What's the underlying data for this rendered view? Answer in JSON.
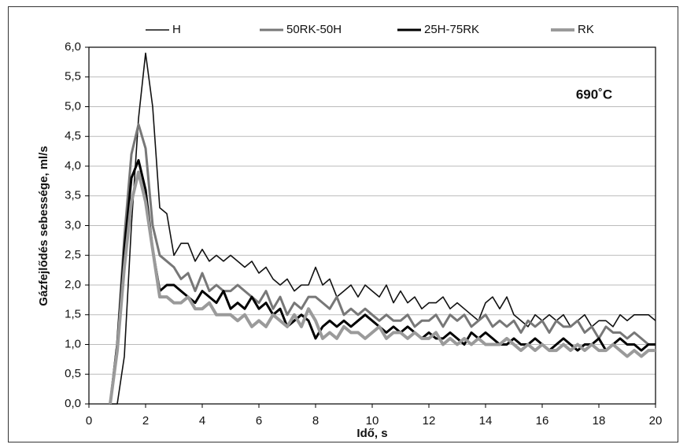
{
  "chart_data": {
    "type": "line",
    "x_label": "Idő,     s",
    "y_label": "Gázfejlődés sebessége,  ml/s",
    "annotation": "690˚C",
    "legend": "top",
    "grid": true,
    "xlim": [
      0,
      20
    ],
    "xticks": [
      0,
      2,
      4,
      6,
      8,
      10,
      12,
      14,
      16,
      18,
      20
    ],
    "ylim": [
      0,
      6
    ],
    "yticks": [
      {
        "value": 0,
        "label": "0,0"
      },
      {
        "value": 0.5,
        "label": "0,5"
      },
      {
        "value": 1,
        "label": "1,0"
      },
      {
        "value": 1.5,
        "label": "1,5"
      },
      {
        "value": 2,
        "label": "2,0"
      },
      {
        "value": 2.5,
        "label": "2,5"
      },
      {
        "value": 3,
        "label": "3,0"
      },
      {
        "value": 3.5,
        "label": "3,5"
      },
      {
        "value": 4,
        "label": "4,0"
      },
      {
        "value": 4.5,
        "label": "4,5"
      },
      {
        "value": 5,
        "label": "5,0"
      },
      {
        "value": 5.5,
        "label": "5,5"
      },
      {
        "value": 6,
        "label": "6,0"
      }
    ],
    "x": [
      0.75,
      1,
      1.25,
      1.5,
      1.75,
      2,
      2.25,
      2.5,
      2.75,
      3,
      3.25,
      3.5,
      3.75,
      4,
      4.25,
      4.5,
      4.75,
      5,
      5.25,
      5.5,
      5.75,
      6,
      6.25,
      6.5,
      6.75,
      7,
      7.25,
      7.5,
      7.75,
      8,
      8.25,
      8.5,
      8.75,
      9,
      9.25,
      9.5,
      9.75,
      10,
      10.25,
      10.5,
      10.75,
      11,
      11.25,
      11.5,
      11.75,
      12,
      12.25,
      12.5,
      12.75,
      13,
      13.25,
      13.5,
      13.75,
      14,
      14.25,
      14.5,
      14.75,
      15,
      15.25,
      15.5,
      15.75,
      16,
      16.25,
      16.5,
      16.75,
      17,
      17.25,
      17.5,
      17.75,
      18,
      18.25,
      18.5,
      18.75,
      19,
      19.25,
      19.5,
      19.75,
      20
    ],
    "series": [
      {
        "name": "H",
        "color": "#111111",
        "values": [
          0,
          0,
          0.8,
          3.0,
          4.8,
          5.9,
          5.0,
          3.3,
          3.2,
          2.5,
          2.7,
          2.7,
          2.4,
          2.6,
          2.4,
          2.5,
          2.4,
          2.5,
          2.4,
          2.3,
          2.4,
          2.2,
          2.3,
          2.1,
          2.0,
          2.1,
          1.9,
          2.0,
          2.0,
          2.3,
          2.0,
          2.1,
          1.8,
          1.9,
          2.0,
          1.8,
          2.0,
          1.9,
          1.8,
          2.0,
          1.7,
          1.9,
          1.7,
          1.8,
          1.6,
          1.7,
          1.7,
          1.8,
          1.6,
          1.7,
          1.6,
          1.5,
          1.4,
          1.7,
          1.8,
          1.6,
          1.8,
          1.5,
          1.4,
          1.3,
          1.5,
          1.4,
          1.5,
          1.4,
          1.5,
          1.3,
          1.4,
          1.5,
          1.3,
          1.4,
          1.4,
          1.3,
          1.5,
          1.4,
          1.5,
          1.5,
          1.5,
          1.4
        ]
      },
      {
        "name": "50RK-50H",
        "color": "#777777",
        "values": [
          0,
          1.0,
          2.8,
          4.2,
          4.7,
          4.3,
          3.0,
          2.5,
          2.4,
          2.3,
          2.1,
          2.2,
          1.9,
          2.2,
          1.9,
          2.0,
          1.9,
          1.9,
          2.0,
          1.9,
          1.8,
          1.7,
          1.9,
          1.6,
          1.8,
          1.5,
          1.7,
          1.6,
          1.8,
          1.8,
          1.7,
          1.6,
          1.8,
          1.5,
          1.6,
          1.5,
          1.6,
          1.5,
          1.4,
          1.5,
          1.4,
          1.4,
          1.5,
          1.3,
          1.4,
          1.4,
          1.5,
          1.3,
          1.5,
          1.4,
          1.5,
          1.3,
          1.4,
          1.5,
          1.3,
          1.4,
          1.3,
          1.4,
          1.2,
          1.4,
          1.3,
          1.4,
          1.2,
          1.4,
          1.3,
          1.3,
          1.4,
          1.2,
          1.3,
          1.1,
          1.3,
          1.2,
          1.2,
          1.1,
          1.2,
          1.1,
          1.0,
          1.0
        ]
      },
      {
        "name": "25H-75RK",
        "color": "#000000",
        "values": [
          0,
          1.0,
          2.6,
          3.8,
          4.1,
          3.6,
          2.6,
          1.9,
          2.0,
          2.0,
          1.9,
          1.8,
          1.7,
          1.9,
          1.8,
          1.7,
          1.9,
          1.6,
          1.7,
          1.6,
          1.8,
          1.6,
          1.7,
          1.5,
          1.6,
          1.3,
          1.4,
          1.5,
          1.4,
          1.1,
          1.3,
          1.4,
          1.3,
          1.4,
          1.3,
          1.4,
          1.5,
          1.4,
          1.3,
          1.2,
          1.3,
          1.2,
          1.3,
          1.2,
          1.1,
          1.2,
          1.1,
          1.1,
          1.2,
          1.1,
          1.0,
          1.2,
          1.1,
          1.2,
          1.1,
          1.0,
          1.0,
          1.1,
          1.0,
          1.0,
          1.1,
          1.0,
          0.9,
          1.0,
          1.1,
          1.0,
          0.9,
          1.0,
          1.0,
          1.1,
          0.9,
          1.0,
          1.1,
          1.0,
          1.0,
          0.9,
          1.0,
          1.0
        ]
      },
      {
        "name": "RK",
        "color": "#9a9a9a",
        "values": [
          0,
          0.9,
          2.3,
          3.4,
          3.9,
          3.4,
          2.6,
          1.8,
          1.8,
          1.7,
          1.7,
          1.8,
          1.6,
          1.6,
          1.7,
          1.5,
          1.5,
          1.5,
          1.4,
          1.5,
          1.3,
          1.4,
          1.3,
          1.5,
          1.4,
          1.3,
          1.5,
          1.3,
          1.6,
          1.4,
          1.1,
          1.2,
          1.1,
          1.3,
          1.2,
          1.2,
          1.1,
          1.2,
          1.3,
          1.1,
          1.2,
          1.2,
          1.1,
          1.2,
          1.1,
          1.1,
          1.2,
          1.0,
          1.1,
          1.0,
          1.1,
          1.0,
          1.1,
          1.0,
          1.0,
          1.0,
          1.1,
          1.0,
          0.9,
          1.0,
          0.9,
          1.0,
          0.9,
          0.9,
          1.0,
          0.9,
          1.0,
          0.9,
          1.0,
          0.9,
          0.9,
          1.0,
          0.9,
          0.8,
          0.9,
          0.8,
          0.9,
          0.9
        ]
      }
    ]
  }
}
